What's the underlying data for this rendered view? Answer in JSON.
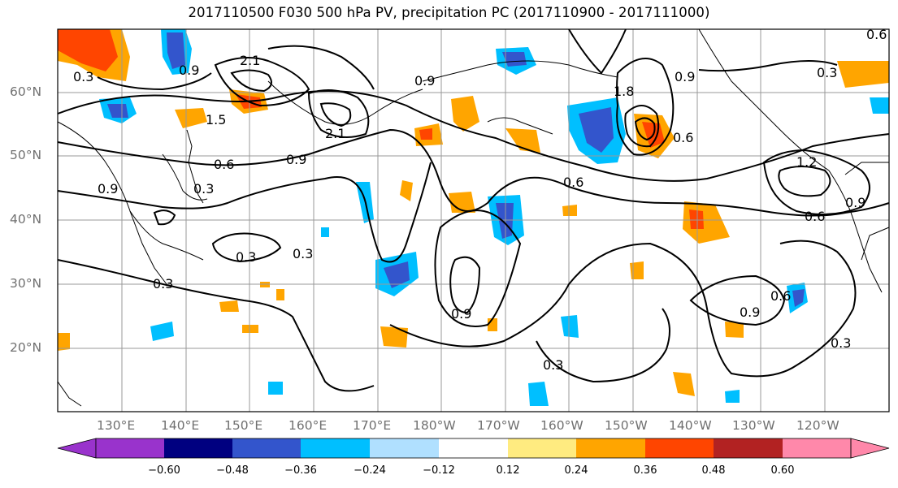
{
  "title": "2017110500 F030 500 hPa PV, precipitation PC (2017110900 - 2017111000)",
  "latitude_labels": [
    "60°N",
    "50°N",
    "40°N",
    "30°N",
    "20°N"
  ],
  "longitude_labels": [
    "130°E",
    "140°E",
    "150°E",
    "160°E",
    "170°E",
    "180°W",
    "170°W",
    "160°W",
    "150°W",
    "140°W",
    "130°W",
    "120°W"
  ],
  "contour_labels": [
    "0.3",
    "0.6",
    "0.9",
    "1.2",
    "1.5",
    "1.8",
    "2.1"
  ],
  "colorbar": {
    "tick_labels": [
      "−0.60",
      "−0.48",
      "−0.36",
      "−0.24",
      "−0.12",
      "0.12",
      "0.24",
      "0.36",
      "0.48",
      "0.60"
    ],
    "colors": [
      "#9933cc",
      "#000080",
      "#3355cc",
      "#00bfff",
      "#b0e0ff",
      "#ffffff",
      "#ffeb80",
      "#ffa500",
      "#ff4500",
      "#b22222",
      "#ff88aa"
    ]
  }
}
